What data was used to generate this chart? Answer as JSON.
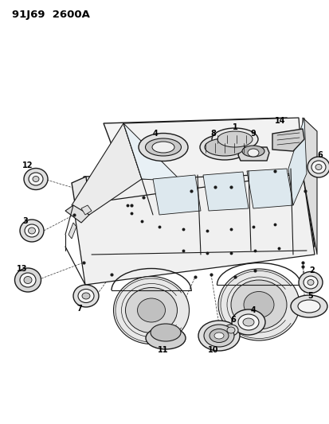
{
  "title": "91J69  2600A",
  "bg_color": "#ffffff",
  "fig_width": 4.14,
  "fig_height": 5.33,
  "dpi": 100,
  "line_color": "#1a1a1a",
  "car_fill": "#f8f8f8",
  "car_roof_fill": "#f0f0f0",
  "part_fill": "#e8e8e8",
  "part_dark": "#b0b0b0"
}
